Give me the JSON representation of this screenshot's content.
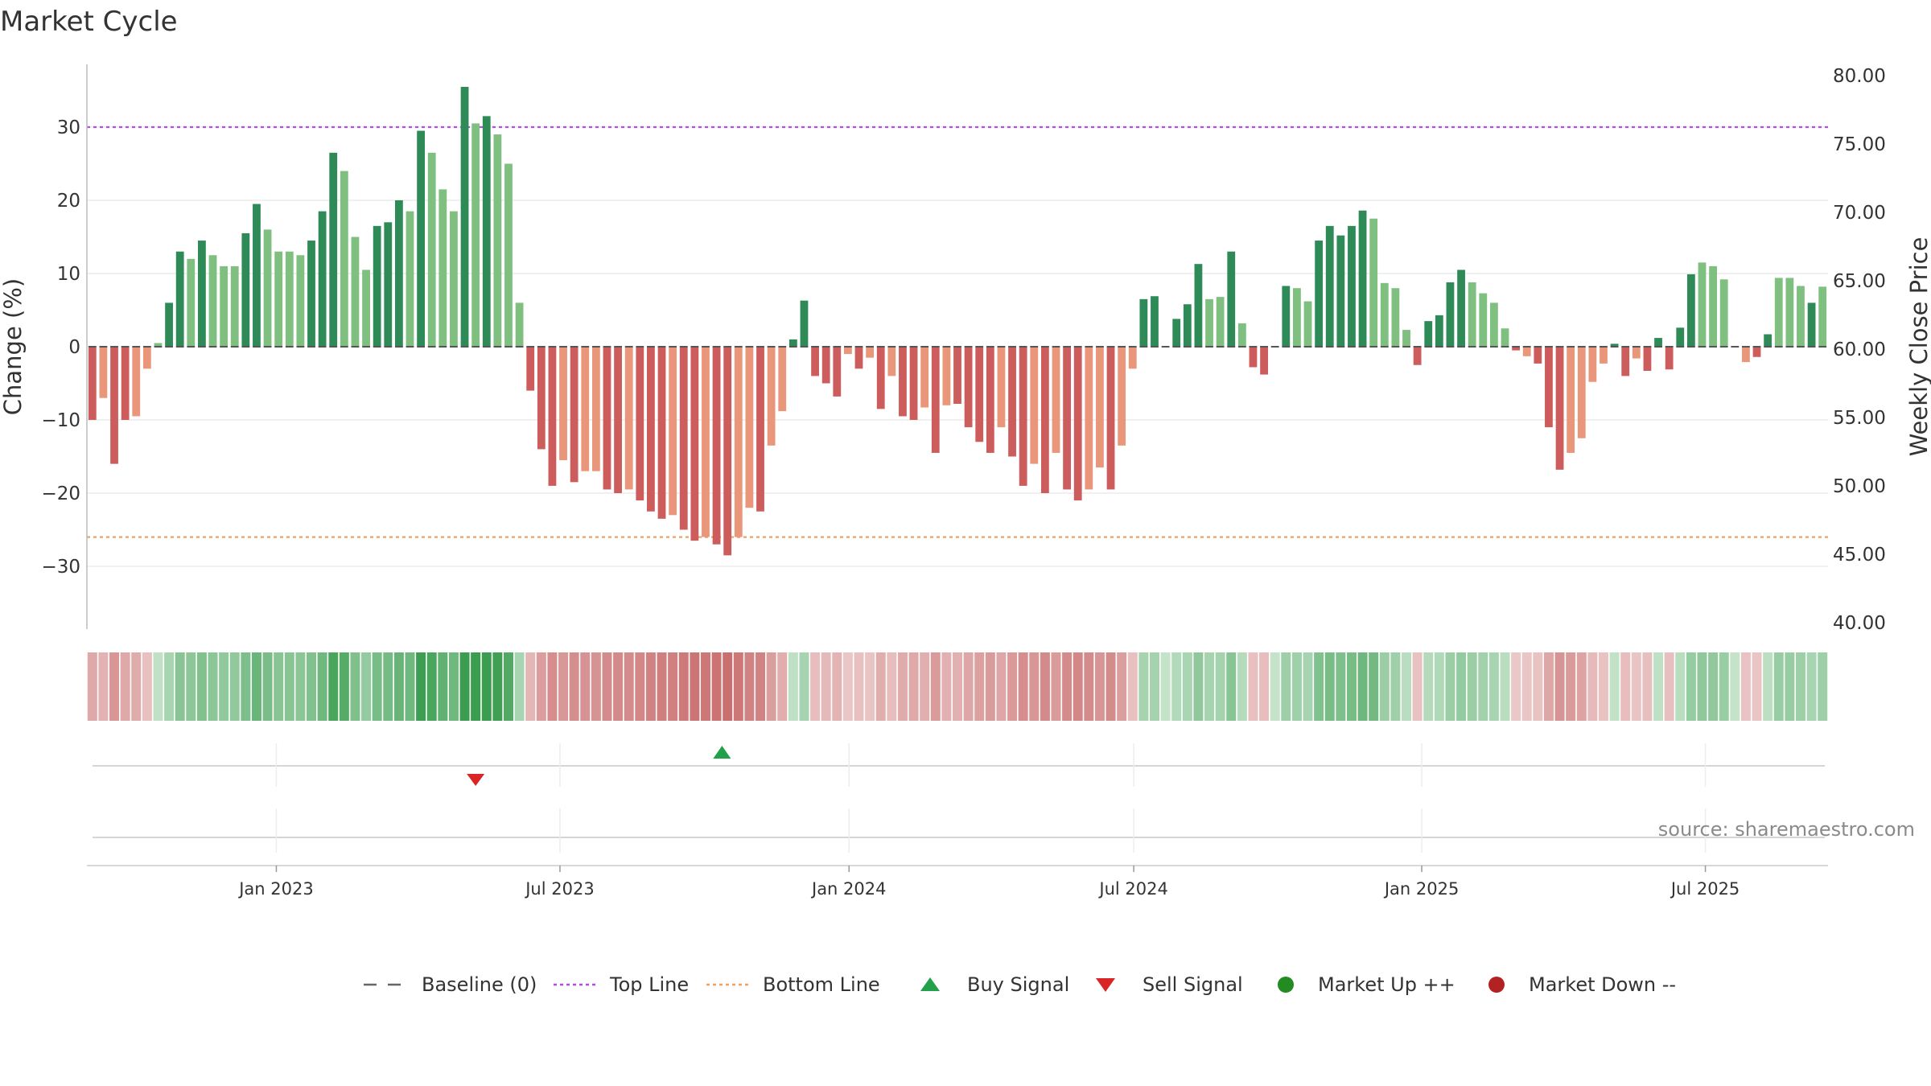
{
  "title": "Market Cycle",
  "colors": {
    "up_strong": "#2e8b57",
    "up_weak": "#7fbf7f",
    "down_strong": "#cd5c5c",
    "down_weak": "#e9967a",
    "top_line": "#b04fe0",
    "bottom_line": "#e8a366",
    "buy": "#22a04a",
    "sell": "#d92525",
    "market_up": "#228b22",
    "market_down": "#b22222",
    "baseline": "#555555",
    "grid": "#e6e6e6",
    "axis": "#bbbbbb"
  },
  "source": "source: sharemaestro.com",
  "legend": [
    {
      "label": "Baseline (0)",
      "kind": "dash",
      "color": "#666666"
    },
    {
      "label": "Top Line",
      "kind": "dot",
      "color": "#b04fe0"
    },
    {
      "label": "Bottom Line",
      "kind": "dot",
      "color": "#e8a366"
    },
    {
      "label": "Buy Signal",
      "kind": "tri-up",
      "color": "#22a04a"
    },
    {
      "label": "Sell Signal",
      "kind": "tri-down",
      "color": "#d92525"
    },
    {
      "label": "Market Up ++",
      "kind": "circle",
      "color": "#228b22"
    },
    {
      "label": "Market Down --",
      "kind": "circle",
      "color": "#b22222"
    }
  ],
  "chart_data": {
    "type": "bar",
    "title": "Market Cycle",
    "ylabel": "Change (%)",
    "y2label": "Weekly Close Price",
    "ylim": [
      -38,
      38
    ],
    "y_ticks": [
      30,
      20,
      10,
      0,
      -10,
      -20,
      -30
    ],
    "y_tick_labels": [
      "30",
      "20",
      "10",
      "0",
      "−10",
      "−20",
      "−30"
    ],
    "y2lim": [
      40,
      80
    ],
    "y2_ticks": [
      "80.00",
      "75.00",
      "70.00",
      "65.00",
      "60.00",
      "55.00",
      "50.00",
      "45.00",
      "40.00"
    ],
    "top_line": 30,
    "bottom_line": -26,
    "x_start": "2022-09-12",
    "x_end": "2025-09-08",
    "x_ticks": [
      {
        "label": "Jan 2023",
        "week": 16.8
      },
      {
        "label": "Jul 2023",
        "week": 42.7
      },
      {
        "label": "Jan 2024",
        "week": 69.1
      },
      {
        "label": "Jul 2024",
        "week": 95.1
      },
      {
        "label": "Jan 2025",
        "week": 121.4
      },
      {
        "label": "Jul 2025",
        "week": 147.3
      }
    ],
    "buy_signals": [
      {
        "week": 57.5
      }
    ],
    "sell_signals": [
      {
        "week": 35.0
      }
    ],
    "values": [
      -10,
      -7,
      -16,
      -10,
      -9.5,
      -3,
      0.5,
      6,
      13,
      12,
      14.5,
      12.5,
      11,
      11,
      15.5,
      19.5,
      16,
      13,
      13,
      12.5,
      14.5,
      18.5,
      26.5,
      24,
      15,
      10.5,
      16.5,
      17,
      20,
      18.5,
      29.5,
      26.5,
      21.5,
      18.5,
      35.5,
      30.5,
      31.5,
      29,
      25,
      6,
      -6,
      -14,
      -19,
      -15.5,
      -18.5,
      -17,
      -17,
      -19.5,
      -20,
      -19.5,
      -21,
      -22.5,
      -23.5,
      -23,
      -25,
      -26.5,
      -26,
      -27,
      -28.5,
      -26,
      -22,
      -22.5,
      -13.5,
      -8.8,
      1,
      6.3,
      -4,
      -5,
      -6.8,
      -1,
      -3,
      -1.5,
      -8.5,
      -4,
      -9.5,
      -10,
      -8.3,
      -14.5,
      -8,
      -7.8,
      -11,
      -13,
      -14.5,
      -11,
      -15,
      -19,
      -16,
      -20,
      -14.5,
      -19.5,
      -21,
      -19.5,
      -16.5,
      -19.5,
      -13.5,
      -3,
      6.5,
      6.9,
      0,
      3.8,
      5.8,
      11.3,
      6.5,
      6.8,
      13,
      3.2,
      -2.8,
      -3.8,
      0,
      8.3,
      8,
      6.2,
      14.5,
      16.5,
      15.2,
      16.5,
      18.6,
      17.5,
      8.7,
      8,
      2.3,
      -2.5,
      3.5,
      4.3,
      8.8,
      10.5,
      8.8,
      7.3,
      6,
      2.5,
      -0.5,
      -1.3,
      -2.3,
      -11,
      -16.8,
      -14.5,
      -12.5,
      -4.8,
      -2.3,
      0.4,
      -4,
      -1.6,
      -3.3,
      1.2,
      -3.1,
      2.6,
      9.9,
      11.5,
      11,
      9.2,
      0,
      -2.1,
      -1.4,
      1.7,
      9.4,
      9.4,
      8.3,
      6,
      8.2
    ],
    "strength": [
      1,
      0,
      1,
      1,
      0,
      0,
      0,
      1,
      1,
      0,
      1,
      0,
      0,
      0,
      1,
      1,
      0,
      0,
      0,
      0,
      1,
      1,
      1,
      0,
      0,
      0,
      1,
      1,
      1,
      0,
      1,
      0,
      0,
      0,
      1,
      0,
      1,
      0,
      0,
      0,
      1,
      1,
      1,
      0,
      1,
      0,
      0,
      1,
      1,
      0,
      1,
      1,
      1,
      0,
      1,
      1,
      0,
      1,
      1,
      0,
      0,
      1,
      0,
      0,
      1,
      1,
      1,
      1,
      1,
      0,
      1,
      0,
      1,
      0,
      1,
      1,
      0,
      1,
      0,
      1,
      1,
      1,
      1,
      0,
      1,
      1,
      0,
      1,
      0,
      1,
      1,
      0,
      0,
      1,
      0,
      0,
      1,
      1,
      0,
      1,
      1,
      1,
      0,
      0,
      1,
      0,
      1,
      1,
      0,
      1,
      0,
      0,
      1,
      1,
      1,
      1,
      1,
      0,
      0,
      0,
      0,
      1,
      1,
      1,
      1,
      1,
      0,
      0,
      0,
      0,
      1,
      0,
      1,
      1,
      1,
      0,
      0,
      0,
      0,
      1,
      1,
      0,
      1,
      1,
      1,
      1,
      1,
      0,
      0,
      0,
      1,
      0,
      1,
      1,
      0,
      0,
      0,
      1
    ]
  }
}
